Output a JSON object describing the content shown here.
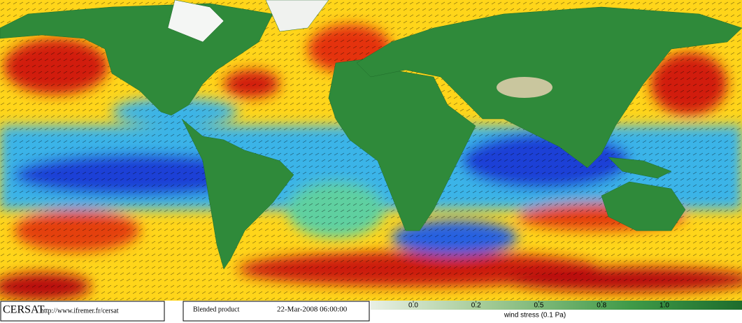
{
  "header": {
    "logo": "CERSAT",
    "url": "http://www.ifremer.fr/cersat",
    "product": "Blended product",
    "date": "22-Mar-2008 06:00:00"
  },
  "legend": {
    "title": "wind stress (0.1 Pa)",
    "ticks": [
      {
        "value": 0,
        "label": "0.0"
      },
      0.2,
      0.5,
      0.8,
      {
        "value": 1,
        "label": "1.0"
      }
    ]
  }
}
